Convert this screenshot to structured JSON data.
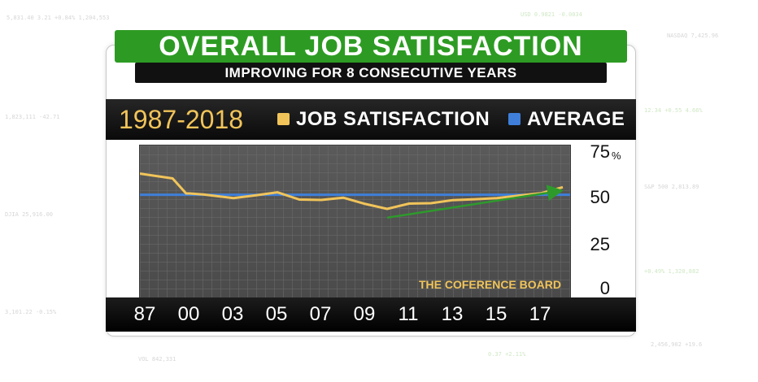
{
  "title": "OVERALL JOB SATISFACTION",
  "subtitle": "IMPROVING FOR 8 CONSECUTIVE YEARS",
  "source": "THE COFERENCE BOARD",
  "colors": {
    "title_green": "#2d9b23",
    "satisfaction": "#f1c45a",
    "average": "#3f7fd9",
    "trend_arrow": "#2e9a2c"
  },
  "chart_data": {
    "type": "line",
    "period_label": "1987-2018",
    "x_tick_labels": [
      "87",
      "00",
      "03",
      "05",
      "07",
      "09",
      "11",
      "13",
      "15",
      "17"
    ],
    "ylim": [
      0,
      75
    ],
    "y_ticks": [
      0,
      25,
      50,
      75
    ],
    "y_unit": "%",
    "grid": true,
    "legend_position": "top",
    "series": [
      {
        "name": "JOB SATISFACTION",
        "color": "#f1c45a",
        "x": [
          "87",
          "95",
          "99",
          "00",
          "01",
          "03",
          "04",
          "05",
          "06",
          "07",
          "08",
          "09",
          "10",
          "11",
          "12",
          "13",
          "14",
          "15",
          "16",
          "17",
          "18"
        ],
        "values": [
          61.1,
          58.6,
          50.7,
          50.7,
          50.1,
          48.3,
          49.7,
          51.3,
          47.5,
          47.3,
          48.5,
          45.2,
          42.6,
          45.4,
          45.6,
          47.2,
          47.7,
          48.3,
          49.6,
          50.8,
          54.0
        ]
      },
      {
        "name": "AVERAGE",
        "color": "#3f7fd9",
        "values": [
          50.0
        ]
      }
    ],
    "annotations": [
      {
        "type": "trend-arrow",
        "from": [
          "10",
          38
        ],
        "to": [
          "18",
          52
        ]
      }
    ]
  },
  "background_ticker": [
    "5,831.40   3.21   +0.84%   1,204,553",
    "USD 0.9821   -0.0034",
    "NASDAQ  7,425.96",
    "1,823,111   -42.71",
    "12.34   +0.55   4.66%",
    "S&P 500   2,813.89",
    "DJIA 25,916.00",
    "+0.49%   1,320,882",
    "3,101.22  -0.15%",
    "VOL 842,331",
    "0.37  +2.11%",
    "2,456,902   +19.6"
  ]
}
